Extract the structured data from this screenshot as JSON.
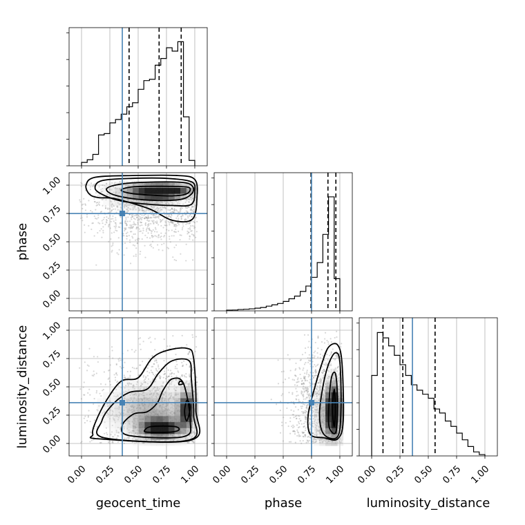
{
  "chart_data": {
    "type": "corner",
    "parameters": [
      "geocent_time",
      "phase",
      "luminosity_distance"
    ],
    "axis_labels": {
      "x": [
        "geocent_time",
        "phase",
        "luminosity_distance"
      ],
      "y": [
        "",
        "phase",
        "luminosity_distance"
      ]
    },
    "ticks": [
      0.0,
      0.25,
      0.5,
      0.75,
      1.0
    ],
    "tick_labels": [
      "0.00",
      "0.25",
      "0.50",
      "0.75",
      "1.00"
    ],
    "xlim": [
      -0.11,
      1.11
    ],
    "ylim": [
      -0.11,
      1.11
    ],
    "grid": true,
    "truths": [
      0.36,
      0.75,
      0.36
    ],
    "truth_color": "#4682b4",
    "quantiles": [
      [
        0.42,
        0.685,
        0.88
      ],
      [
        0.745,
        0.895,
        0.965
      ],
      [
        0.1,
        0.275,
        0.56
      ]
    ],
    "histograms": [
      {
        "edges": [
          0.0,
          0.05,
          0.1,
          0.15,
          0.2,
          0.25,
          0.3,
          0.35,
          0.4,
          0.45,
          0.5,
          0.55,
          0.6,
          0.65,
          0.7,
          0.75,
          0.8,
          0.85,
          0.9,
          0.95,
          1.0
        ],
        "counts": [
          0.025,
          0.045,
          0.085,
          0.23,
          0.24,
          0.32,
          0.345,
          0.385,
          0.44,
          0.47,
          0.57,
          0.635,
          0.645,
          0.75,
          0.8,
          0.88,
          0.855,
          0.925,
          0.365,
          0.04
        ]
      },
      {
        "edges": [
          0.0,
          0.05,
          0.1,
          0.15,
          0.2,
          0.25,
          0.3,
          0.35,
          0.4,
          0.45,
          0.5,
          0.55,
          0.6,
          0.65,
          0.7,
          0.75,
          0.8,
          0.85,
          0.9,
          0.95,
          1.0
        ],
        "counts": [
          0.005,
          0.006,
          0.01,
          0.012,
          0.015,
          0.02,
          0.025,
          0.035,
          0.045,
          0.055,
          0.07,
          0.09,
          0.11,
          0.145,
          0.185,
          0.25,
          0.36,
          0.57,
          0.85,
          0.24
        ]
      },
      {
        "edges": [
          0.0,
          0.05,
          0.1,
          0.15,
          0.2,
          0.25,
          0.3,
          0.35,
          0.4,
          0.45,
          0.5,
          0.55,
          0.6,
          0.65,
          0.7,
          0.75,
          0.8,
          0.85,
          0.9,
          0.95,
          1.0
        ],
        "counts": [
          0.6,
          0.92,
          0.88,
          0.82,
          0.75,
          0.68,
          0.6,
          0.53,
          0.49,
          0.46,
          0.43,
          0.35,
          0.32,
          0.26,
          0.22,
          0.17,
          0.12,
          0.07,
          0.03,
          0.01
        ]
      }
    ],
    "pairs": [
      {
        "x_param": "geocent_time",
        "y_param": "phase",
        "contours": [
          [
            [
              0.8,
              0.905
            ],
            [
              0.92,
              0.92
            ],
            [
              0.96,
              0.96
            ],
            [
              0.92,
              0.985
            ],
            [
              0.7,
              0.99
            ],
            [
              0.45,
              0.985
            ],
            [
              0.35,
              0.955
            ],
            [
              0.45,
              0.925
            ],
            [
              0.65,
              0.91
            ]
          ],
          [
            [
              0.55,
              0.87
            ],
            [
              0.85,
              0.87
            ],
            [
              0.97,
              0.92
            ],
            [
              0.98,
              0.99
            ],
            [
              0.88,
              1.025
            ],
            [
              0.55,
              1.025
            ],
            [
              0.32,
              1.005
            ],
            [
              0.22,
              0.965
            ],
            [
              0.3,
              0.91
            ]
          ],
          [
            [
              0.55,
              0.835
            ],
            [
              0.8,
              0.82
            ],
            [
              0.97,
              0.83
            ],
            [
              1.0,
              0.95
            ],
            [
              0.97,
              1.03
            ],
            [
              0.75,
              1.06
            ],
            [
              0.45,
              1.06
            ],
            [
              0.18,
              1.04
            ],
            [
              0.12,
              0.97
            ],
            [
              0.2,
              0.91
            ],
            [
              0.35,
              0.86
            ]
          ],
          [
            [
              0.3,
              0.88
            ],
            [
              0.6,
              0.79
            ],
            [
              0.8,
              0.69
            ],
            [
              0.98,
              0.7
            ],
            [
              1.02,
              0.9
            ],
            [
              1.0,
              1.05
            ],
            [
              0.85,
              1.085
            ],
            [
              0.45,
              1.085
            ],
            [
              0.12,
              1.07
            ],
            [
              0.04,
              1.0
            ],
            [
              0.07,
              0.92
            ],
            [
              0.15,
              0.89
            ]
          ]
        ]
      },
      {
        "x_param": "geocent_time",
        "y_param": "luminosity_distance",
        "contours": [
          [
            [
              0.58,
              0.1
            ],
            [
              0.78,
              0.1
            ],
            [
              0.86,
              0.12
            ],
            [
              0.82,
              0.15
            ],
            [
              0.62,
              0.15
            ],
            [
              0.56,
              0.12
            ]
          ],
          [
            [
              0.93,
              0.2
            ],
            [
              0.96,
              0.32
            ],
            [
              0.93,
              0.38
            ],
            [
              0.91,
              0.28
            ]
          ],
          [
            [
              0.86,
              0.52
            ],
            [
              0.9,
              0.53
            ],
            [
              0.87,
              0.55
            ]
          ],
          [
            [
              0.42,
              0.07
            ],
            [
              0.9,
              0.06
            ],
            [
              0.96,
              0.2
            ],
            [
              0.9,
              0.53
            ],
            [
              0.8,
              0.57
            ],
            [
              0.72,
              0.47
            ],
            [
              0.67,
              0.36
            ],
            [
              0.58,
              0.28
            ],
            [
              0.46,
              0.26
            ],
            [
              0.36,
              0.16
            ]
          ],
          [
            [
              0.2,
              0.05
            ],
            [
              0.95,
              0.03
            ],
            [
              0.99,
              0.25
            ],
            [
              0.97,
              0.57
            ],
            [
              0.95,
              0.73
            ],
            [
              0.8,
              0.73
            ],
            [
              0.68,
              0.62
            ],
            [
              0.58,
              0.48
            ],
            [
              0.42,
              0.45
            ],
            [
              0.28,
              0.35
            ],
            [
              0.18,
              0.2
            ]
          ],
          [
            [
              0.16,
              0.04
            ],
            [
              0.97,
              0.03
            ],
            [
              1.01,
              0.3
            ],
            [
              0.99,
              0.75
            ],
            [
              0.93,
              0.84
            ],
            [
              0.75,
              0.82
            ],
            [
              0.62,
              0.75
            ],
            [
              0.5,
              0.58
            ],
            [
              0.35,
              0.55
            ],
            [
              0.22,
              0.38
            ],
            [
              0.12,
              0.18
            ],
            [
              0.1,
              0.08
            ]
          ]
        ]
      },
      {
        "x_param": "phase",
        "y_param": "luminosity_distance",
        "contours": [
          [
            [
              0.935,
              0.3
            ],
            [
              0.95,
              0.15
            ],
            [
              0.96,
              0.3
            ],
            [
              0.95,
              0.48
            ]
          ],
          [
            [
              0.9,
              0.2
            ],
            [
              0.93,
              0.1
            ],
            [
              0.97,
              0.12
            ],
            [
              0.98,
              0.4
            ],
            [
              0.96,
              0.62
            ],
            [
              0.92,
              0.55
            ]
          ],
          [
            [
              0.82,
              0.25
            ],
            [
              0.86,
              0.08
            ],
            [
              0.98,
              0.06
            ],
            [
              1.01,
              0.3
            ],
            [
              1.0,
              0.72
            ],
            [
              0.96,
              0.8
            ],
            [
              0.9,
              0.7
            ],
            [
              0.85,
              0.5
            ]
          ],
          [
            [
              0.74,
              0.08
            ],
            [
              0.86,
              0.05
            ],
            [
              0.98,
              0.04
            ],
            [
              1.03,
              0.2
            ],
            [
              1.02,
              0.7
            ],
            [
              0.98,
              0.87
            ],
            [
              0.9,
              0.85
            ],
            [
              0.84,
              0.7
            ],
            [
              0.78,
              0.5
            ],
            [
              0.72,
              0.25
            ]
          ]
        ]
      }
    ]
  }
}
